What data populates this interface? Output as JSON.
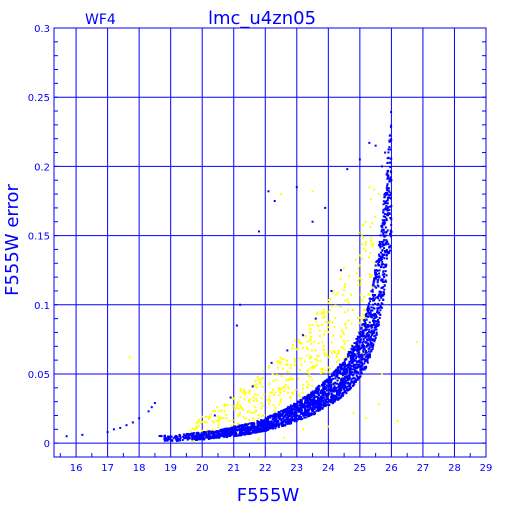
{
  "chart_data": {
    "type": "scatter",
    "title": "lmc_u4zn05",
    "chip_label": "WF4",
    "xlabel": "F555W",
    "ylabel": "F555W error",
    "xlim": [
      15.3,
      29.0
    ],
    "ylim": [
      -0.01,
      0.3
    ],
    "xticks": [
      16,
      17,
      18,
      19,
      20,
      21,
      22,
      23,
      24,
      25,
      26,
      27,
      28,
      29
    ],
    "yticks": [
      0,
      0.05,
      0.1,
      0.15,
      0.2,
      0.25,
      0.3
    ],
    "ytick_labels": [
      "0",
      "0.05",
      "0.1",
      "0.15",
      "0.2",
      "0.25",
      "0.3"
    ],
    "grid": true,
    "colors": {
      "frame": "#0000ff",
      "primary_points": "#0000ff",
      "secondary_points": "#ffff00"
    },
    "series": [
      {
        "color": "#0000ff",
        "trend": {
          "x": [
            18.5,
            19.0,
            19.5,
            20.0,
            20.5,
            21.0,
            21.5,
            22.0,
            22.5,
            23.0,
            23.5,
            24.0,
            24.5,
            25.0,
            25.2,
            25.4,
            25.6,
            25.8,
            26.0
          ],
          "y": [
            0.003,
            0.003,
            0.004,
            0.005,
            0.006,
            0.008,
            0.01,
            0.013,
            0.017,
            0.022,
            0.028,
            0.036,
            0.046,
            0.062,
            0.072,
            0.088,
            0.11,
            0.145,
            0.19
          ]
        },
        "outliers": [
          [
            15.7,
            0.005
          ],
          [
            16.2,
            0.006
          ],
          [
            17.0,
            0.008
          ],
          [
            17.2,
            0.01
          ],
          [
            17.4,
            0.011
          ],
          [
            17.6,
            0.013
          ],
          [
            17.8,
            0.015
          ],
          [
            18.0,
            0.018
          ],
          [
            18.3,
            0.023
          ],
          [
            18.4,
            0.026
          ],
          [
            18.5,
            0.029
          ],
          [
            21.1,
            0.085
          ],
          [
            21.2,
            0.1
          ],
          [
            21.8,
            0.153
          ],
          [
            22.1,
            0.182
          ],
          [
            22.3,
            0.175
          ],
          [
            23.0,
            0.185
          ],
          [
            23.5,
            0.16
          ],
          [
            23.9,
            0.17
          ],
          [
            24.6,
            0.198
          ],
          [
            25.0,
            0.205
          ],
          [
            25.3,
            0.217
          ],
          [
            25.5,
            0.215
          ],
          [
            25.7,
            0.2
          ],
          [
            25.8,
            0.21
          ],
          [
            26.0,
            0.19
          ],
          [
            20.4,
            0.02
          ],
          [
            20.9,
            0.033
          ],
          [
            21.6,
            0.041
          ],
          [
            22.2,
            0.058
          ],
          [
            22.7,
            0.067
          ],
          [
            23.2,
            0.078
          ],
          [
            23.6,
            0.09
          ],
          [
            24.1,
            0.11
          ],
          [
            24.4,
            0.125
          ]
        ]
      },
      {
        "color": "#ffff00",
        "trend": {
          "x": [
            19.5,
            20.0,
            20.5,
            21.0,
            21.5,
            22.0,
            22.5,
            23.0,
            23.5,
            24.0,
            24.5,
            25.0,
            25.5
          ],
          "y": [
            0.006,
            0.01,
            0.015,
            0.021,
            0.027,
            0.033,
            0.04,
            0.048,
            0.057,
            0.068,
            0.082,
            0.1,
            0.125
          ]
        },
        "outliers": [
          [
            17.7,
            0.062
          ],
          [
            22.5,
            0.18
          ],
          [
            23.5,
            0.182
          ],
          [
            25.3,
            0.185
          ],
          [
            25.6,
            0.18
          ],
          [
            26.8,
            0.073
          ],
          [
            24.8,
            0.022
          ],
          [
            25.2,
            0.018
          ],
          [
            25.6,
            0.028
          ],
          [
            24.0,
            0.012
          ],
          [
            23.2,
            0.01
          ],
          [
            22.6,
            0.004
          ],
          [
            21.8,
            0.003
          ],
          [
            25.7,
            0.05
          ],
          [
            26.2,
            0.016
          ]
        ]
      }
    ]
  }
}
